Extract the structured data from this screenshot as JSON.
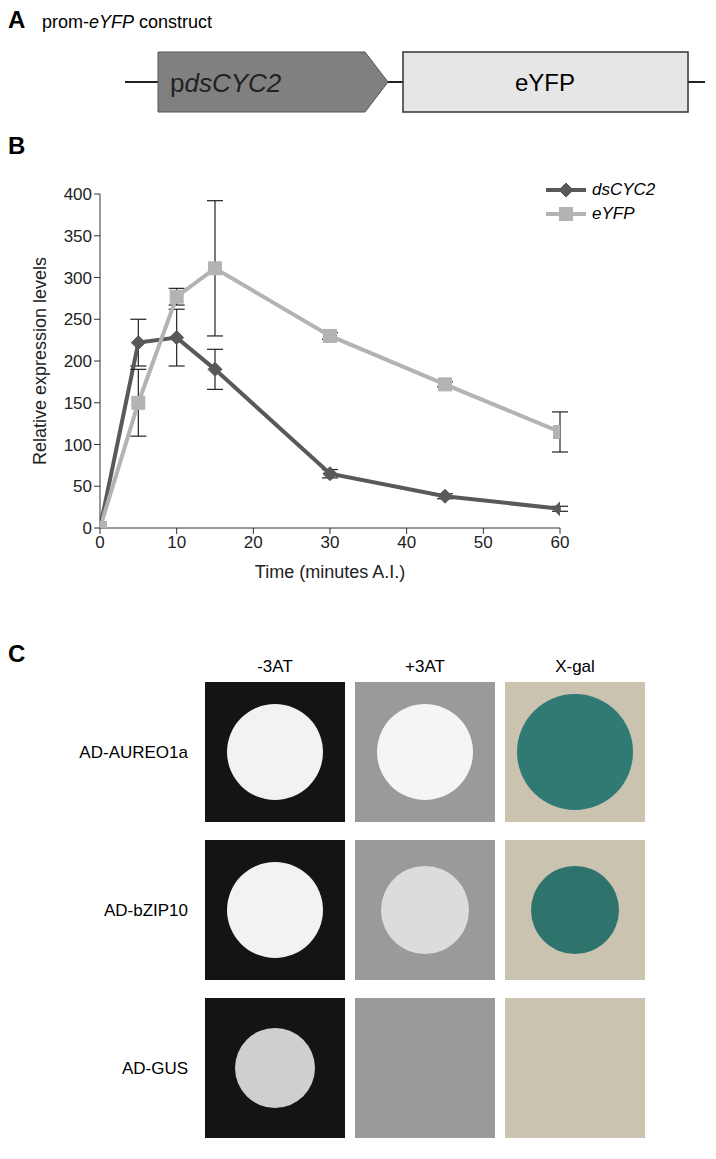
{
  "panel_labels": [
    "A",
    "B",
    "C"
  ],
  "panel_a": {
    "title": "prom-eYFP construct",
    "promoter": "pdsCYC2",
    "gene": "eYFP"
  },
  "chart_data": {
    "type": "line",
    "x": [
      0,
      5,
      10,
      15,
      30,
      45,
      60
    ],
    "series": [
      {
        "name": "dsCYC2",
        "color": "#595959",
        "marker": "diamond",
        "values": [
          0,
          222,
          228,
          190,
          65,
          38,
          23
        ],
        "errors": [
          0,
          28,
          34,
          24,
          5,
          3,
          3
        ]
      },
      {
        "name": "eYFP",
        "color": "#b3b3b3",
        "marker": "square",
        "values": [
          0,
          150,
          277,
          311,
          230,
          172,
          115
        ],
        "errors": [
          0,
          40,
          10,
          81,
          4,
          3,
          24
        ]
      }
    ],
    "x_label": "Time (minutes A.I.)",
    "y_label": "Relative expression levels",
    "xlim": [
      0,
      60
    ],
    "ylim": [
      0,
      400
    ],
    "xticks": [
      0,
      10,
      20,
      30,
      40,
      50,
      60
    ],
    "yticks": [
      0,
      50,
      100,
      150,
      200,
      250,
      300,
      350,
      400
    ],
    "grid": false,
    "legend": "upper right"
  },
  "panel_c": {
    "columns": [
      "-3AT",
      "+3AT",
      "X-gal"
    ],
    "rows": [
      "AD-AUREO1a",
      "AD-bZIP10",
      "AD-GUS"
    ]
  }
}
